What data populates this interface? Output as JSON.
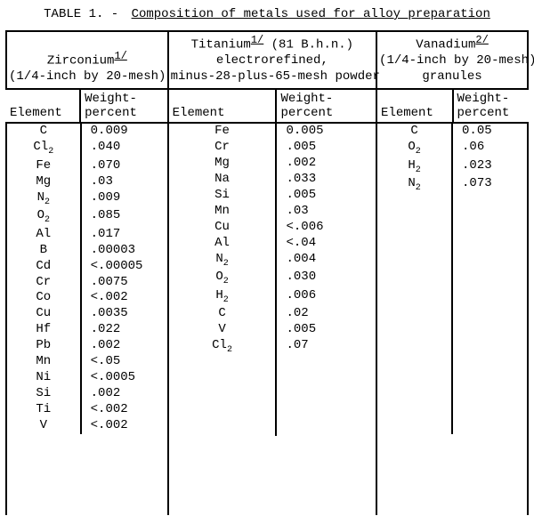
{
  "title": {
    "label": "TABLE 1. -",
    "text": "Composition of metals used for alloy preparation"
  },
  "subhead": {
    "element": "Element",
    "weight_line1": "Weight-",
    "weight_line2": "percent"
  },
  "groups": {
    "zirconium": {
      "name": "Zirconium",
      "footnote": "1/",
      "line2": "(1/4-inch by 20-mesh)",
      "rows": [
        {
          "el": "C",
          "sub": "",
          "wp": "0.009"
        },
        {
          "el": "Cl",
          "sub": "2",
          "wp": ".040"
        },
        {
          "el": "Fe",
          "sub": "",
          "wp": ".070"
        },
        {
          "el": "Mg",
          "sub": "",
          "wp": ".03"
        },
        {
          "el": "N",
          "sub": "2",
          "wp": ".009"
        },
        {
          "el": "O",
          "sub": "2",
          "wp": ".085"
        },
        {
          "el": "Al",
          "sub": "",
          "wp": ".017"
        },
        {
          "el": "B",
          "sub": "",
          "wp": ".00003"
        },
        {
          "el": "Cd",
          "sub": "",
          "wp": "<.00005"
        },
        {
          "el": "Cr",
          "sub": "",
          "wp": ".0075"
        },
        {
          "el": "Co",
          "sub": "",
          "wp": "<.002"
        },
        {
          "el": "Cu",
          "sub": "",
          "wp": ".0035"
        },
        {
          "el": "Hf",
          "sub": "",
          "wp": ".022"
        },
        {
          "el": "Pb",
          "sub": "",
          "wp": ".002"
        },
        {
          "el": "Mn",
          "sub": "",
          "wp": "<.05"
        },
        {
          "el": "Ni",
          "sub": "",
          "wp": "<.0005"
        },
        {
          "el": "Si",
          "sub": "",
          "wp": ".002"
        },
        {
          "el": "Ti",
          "sub": "",
          "wp": "<.002"
        },
        {
          "el": "V",
          "sub": "",
          "wp": "<.002"
        }
      ]
    },
    "titanium": {
      "name": "Titanium",
      "footnote": "1/",
      "after_fn": " (81 B.h.n.)",
      "line2": "electrorefined,",
      "line3": "minus-28-plus-65-mesh powder",
      "rows": [
        {
          "el": "Fe",
          "sub": "",
          "wp": "0.005"
        },
        {
          "el": "Cr",
          "sub": "",
          "wp": ".005"
        },
        {
          "el": "Mg",
          "sub": "",
          "wp": ".002"
        },
        {
          "el": "Na",
          "sub": "",
          "wp": ".033"
        },
        {
          "el": "Si",
          "sub": "",
          "wp": ".005"
        },
        {
          "el": "Mn",
          "sub": "",
          "wp": ".03"
        },
        {
          "el": "Cu",
          "sub": "",
          "wp": "<.006"
        },
        {
          "el": "Al",
          "sub": "",
          "wp": "<.04"
        },
        {
          "el": "N",
          "sub": "2",
          "wp": ".004"
        },
        {
          "el": "O",
          "sub": "2",
          "wp": ".030"
        },
        {
          "el": "H",
          "sub": "2",
          "wp": ".006"
        },
        {
          "el": "C",
          "sub": "",
          "wp": ".02"
        },
        {
          "el": "V",
          "sub": "",
          "wp": ".005"
        },
        {
          "el": "Cl",
          "sub": "2",
          "wp": ".07"
        }
      ]
    },
    "vanadium": {
      "name": "Vanadium",
      "footnote": "2/",
      "line2": "(1/4-inch by 20-mesh)",
      "line3": "granules",
      "rows": [
        {
          "el": "C",
          "sub": "",
          "wp": "0.05"
        },
        {
          "el": "O",
          "sub": "2",
          "wp": ".06"
        },
        {
          "el": "H",
          "sub": "2",
          "wp": ".023"
        },
        {
          "el": "N",
          "sub": "2",
          "wp": ".073"
        }
      ]
    }
  },
  "style": {
    "font_family": "Courier New",
    "base_font_size_pt": 11,
    "rule_color": "#000000",
    "background": "#ffffff",
    "row_count_max": 19
  }
}
